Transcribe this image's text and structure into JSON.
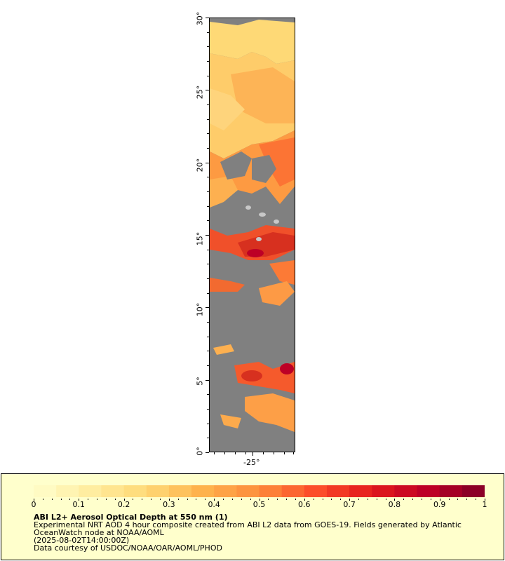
{
  "map": {
    "lat_labels": [
      "30°",
      "25°",
      "20°",
      "15°",
      "10°",
      "5°",
      "0°"
    ],
    "lon_labels": [
      "-25°"
    ],
    "no_data_color": "#808080",
    "cloud_color": "#c8c8c8"
  },
  "legend": {
    "ticks": [
      "0",
      "0.1",
      "0.2",
      "0.3",
      "0.4",
      "0.5",
      "0.6",
      "0.7",
      "0.8",
      "0.9",
      "1"
    ],
    "colors": [
      "#ffffcc",
      "#ffeda0",
      "#fed976",
      "#feb24c",
      "#fd8d3c",
      "#fc4e2a",
      "#e31a1c",
      "#bd0026",
      "#800026"
    ],
    "title": "ABI L2+ Aerosol Optical Depth at 550 nm (1)",
    "line1": "Experimental NRT AOD 4 hour composite created from ABI L2 data from GOES-19. Fields generated by Atlantic",
    "line2": "OceanWatch node at NOAA/AOML",
    "line3": "(2025-08-02T14:00:00Z)",
    "line4": "Data courtesy of USDOC/NOAA/OAR/AOML/PHOD"
  }
}
